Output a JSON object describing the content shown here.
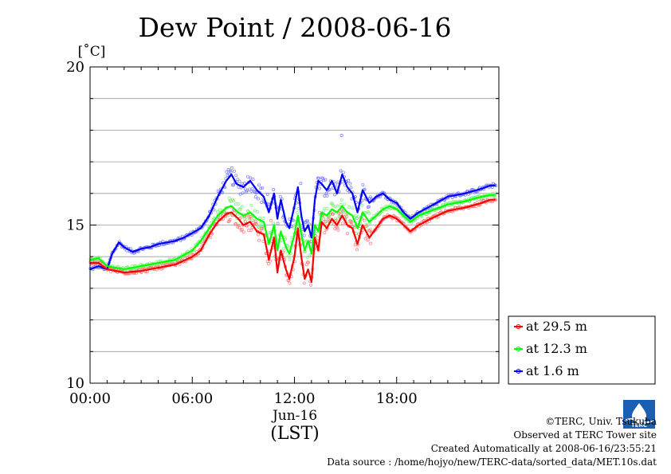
{
  "chart_data": {
    "type": "line",
    "title": "Dew Point / 2008-06-16",
    "ylabel": "[˚C]",
    "xlabel": "(LST)",
    "date_label": "Jun-16",
    "ylim": [
      10,
      20
    ],
    "xlim_hours": [
      0,
      24
    ],
    "y_ticks": [
      "10",
      "15",
      "20"
    ],
    "x_ticks": [
      {
        "hour": 0,
        "label": "00:00"
      },
      {
        "hour": 6,
        "label": "06:00"
      },
      {
        "hour": 12,
        "label": "12:00"
      },
      {
        "hour": 18,
        "label": "18:00"
      }
    ],
    "grid": true,
    "legend_position": "lower-right",
    "series": [
      {
        "name": "at 29.5 m",
        "color": "#ff0000",
        "points": [
          [
            0,
            13.8
          ],
          [
            0.5,
            13.8
          ],
          [
            1,
            13.6
          ],
          [
            1.5,
            13.55
          ],
          [
            2,
            13.5
          ],
          [
            3,
            13.55
          ],
          [
            4,
            13.65
          ],
          [
            5,
            13.75
          ],
          [
            6,
            14
          ],
          [
            6.5,
            14.2
          ],
          [
            7,
            14.7
          ],
          [
            7.5,
            15.1
          ],
          [
            8,
            15.35
          ],
          [
            8.3,
            15.4
          ],
          [
            8.7,
            15.2
          ],
          [
            9,
            15.0
          ],
          [
            9.4,
            15.1
          ],
          [
            9.8,
            14.8
          ],
          [
            10.2,
            14.7
          ],
          [
            10.5,
            13.9
          ],
          [
            10.8,
            14.6
          ],
          [
            11.0,
            13.5
          ],
          [
            11.2,
            14.2
          ],
          [
            11.5,
            13.6
          ],
          [
            11.7,
            13.3
          ],
          [
            12.0,
            14.0
          ],
          [
            12.2,
            14.9
          ],
          [
            12.4,
            14.0
          ],
          [
            12.6,
            13.3
          ],
          [
            12.8,
            13.6
          ],
          [
            13.0,
            13.2
          ],
          [
            13.2,
            14.6
          ],
          [
            13.4,
            14.2
          ],
          [
            13.6,
            15.1
          ],
          [
            13.9,
            14.9
          ],
          [
            14.2,
            15.2
          ],
          [
            14.5,
            15.0
          ],
          [
            14.8,
            15.3
          ],
          [
            15.1,
            15.0
          ],
          [
            15.4,
            14.9
          ],
          [
            15.7,
            14.4
          ],
          [
            16.0,
            15.0
          ],
          [
            16.4,
            14.6
          ],
          [
            16.8,
            14.9
          ],
          [
            17.2,
            15.2
          ],
          [
            17.6,
            15.3
          ],
          [
            18.0,
            15.2
          ],
          [
            18.4,
            15.0
          ],
          [
            18.8,
            14.8
          ],
          [
            19.3,
            15.0
          ],
          [
            20,
            15.2
          ],
          [
            21,
            15.45
          ],
          [
            22,
            15.55
          ],
          [
            23,
            15.7
          ],
          [
            23.5,
            15.8
          ],
          [
            23.8,
            15.8
          ]
        ]
      },
      {
        "name": "at 12.3 m",
        "color": "#00ff00",
        "points": [
          [
            0,
            13.9
          ],
          [
            0.5,
            13.95
          ],
          [
            1,
            13.7
          ],
          [
            1.5,
            13.65
          ],
          [
            2,
            13.6
          ],
          [
            3,
            13.7
          ],
          [
            4,
            13.8
          ],
          [
            5,
            13.9
          ],
          [
            6,
            14.2
          ],
          [
            6.5,
            14.5
          ],
          [
            7,
            14.9
          ],
          [
            7.5,
            15.3
          ],
          [
            8,
            15.55
          ],
          [
            8.3,
            15.6
          ],
          [
            8.7,
            15.4
          ],
          [
            9,
            15.3
          ],
          [
            9.4,
            15.4
          ],
          [
            9.8,
            15.2
          ],
          [
            10.2,
            15.1
          ],
          [
            10.5,
            14.4
          ],
          [
            10.8,
            15.0
          ],
          [
            11.0,
            14.2
          ],
          [
            11.2,
            14.8
          ],
          [
            11.5,
            14.3
          ],
          [
            11.7,
            14.1
          ],
          [
            12.0,
            14.7
          ],
          [
            12.2,
            15.3
          ],
          [
            12.4,
            14.7
          ],
          [
            12.6,
            14.2
          ],
          [
            12.8,
            14.5
          ],
          [
            13.0,
            14.1
          ],
          [
            13.2,
            15.0
          ],
          [
            13.4,
            14.8
          ],
          [
            13.6,
            15.4
          ],
          [
            13.9,
            15.3
          ],
          [
            14.2,
            15.5
          ],
          [
            14.5,
            15.4
          ],
          [
            14.8,
            15.6
          ],
          [
            15.1,
            15.4
          ],
          [
            15.4,
            15.3
          ],
          [
            15.7,
            14.9
          ],
          [
            16.0,
            15.4
          ],
          [
            16.4,
            15.1
          ],
          [
            16.8,
            15.3
          ],
          [
            17.2,
            15.5
          ],
          [
            17.6,
            15.6
          ],
          [
            18.0,
            15.5
          ],
          [
            18.4,
            15.3
          ],
          [
            18.8,
            15.1
          ],
          [
            19.3,
            15.3
          ],
          [
            20,
            15.45
          ],
          [
            21,
            15.65
          ],
          [
            22,
            15.75
          ],
          [
            23,
            15.9
          ],
          [
            23.5,
            15.95
          ],
          [
            23.8,
            15.95
          ]
        ]
      },
      {
        "name": "at 1.6 m",
        "color": "#0000ff",
        "points": [
          [
            0,
            13.6
          ],
          [
            0.5,
            13.7
          ],
          [
            1,
            13.6
          ],
          [
            1.3,
            14.1
          ],
          [
            1.7,
            14.45
          ],
          [
            2,
            14.3
          ],
          [
            2.5,
            14.15
          ],
          [
            3,
            14.25
          ],
          [
            3.5,
            14.3
          ],
          [
            4,
            14.4
          ],
          [
            4.5,
            14.45
          ],
          [
            5,
            14.5
          ],
          [
            5.5,
            14.6
          ],
          [
            6,
            14.75
          ],
          [
            6.5,
            14.9
          ],
          [
            7,
            15.3
          ],
          [
            7.5,
            15.9
          ],
          [
            8,
            16.4
          ],
          [
            8.3,
            16.6
          ],
          [
            8.6,
            16.3
          ],
          [
            9,
            16.2
          ],
          [
            9.4,
            16.4
          ],
          [
            9.8,
            16.1
          ],
          [
            10.2,
            15.9
          ],
          [
            10.5,
            15.4
          ],
          [
            10.8,
            16.0
          ],
          [
            11.0,
            15.2
          ],
          [
            11.2,
            15.8
          ],
          [
            11.5,
            15.1
          ],
          [
            11.7,
            14.9
          ],
          [
            12.0,
            15.6
          ],
          [
            12.2,
            16.2
          ],
          [
            12.4,
            15.3
          ],
          [
            12.6,
            14.8
          ],
          [
            12.8,
            15.0
          ],
          [
            13.0,
            14.6
          ],
          [
            13.2,
            15.8
          ],
          [
            13.4,
            16.4
          ],
          [
            13.6,
            16.3
          ],
          [
            13.9,
            16.1
          ],
          [
            14.2,
            16.4
          ],
          [
            14.5,
            16.0
          ],
          [
            14.8,
            16.6
          ],
          [
            15.1,
            16.2
          ],
          [
            15.4,
            16.0
          ],
          [
            15.7,
            15.4
          ],
          [
            16.0,
            16.1
          ],
          [
            16.4,
            15.7
          ],
          [
            16.8,
            15.9
          ],
          [
            17.2,
            16.0
          ],
          [
            17.6,
            15.8
          ],
          [
            18.0,
            15.7
          ],
          [
            18.4,
            15.4
          ],
          [
            18.8,
            15.2
          ],
          [
            19.3,
            15.4
          ],
          [
            20,
            15.6
          ],
          [
            21,
            15.9
          ],
          [
            22,
            16.0
          ],
          [
            23,
            16.15
          ],
          [
            23.5,
            16.25
          ],
          [
            23.8,
            16.25
          ]
        ]
      }
    ]
  },
  "credits": {
    "copyright": "©TERC, Univ. Tsukuba",
    "site": "Observed at TERC Tower site",
    "created": "Created Automatically at 2008-06-16/23:55:21",
    "source": "Data source : /home/hojyo/new/TERC-data/sorted_data/MET.10s.dat",
    "logo_text": "TERC"
  }
}
